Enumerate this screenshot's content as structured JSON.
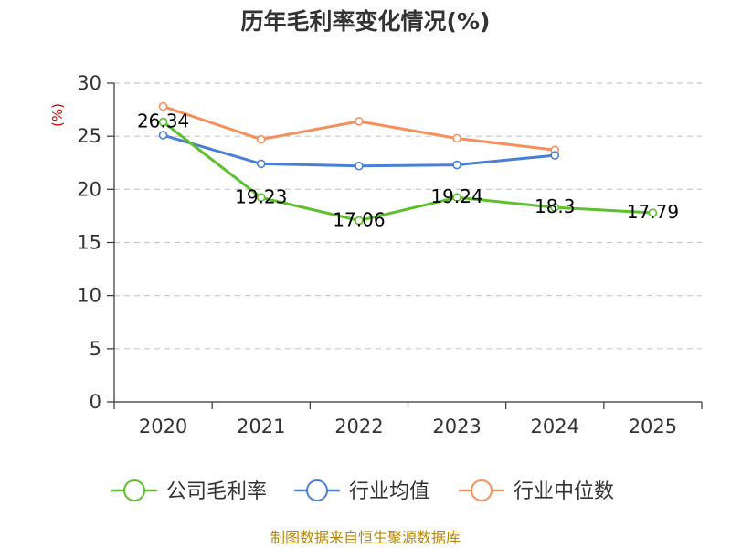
{
  "chart_data": {
    "type": "line",
    "title": "历年毛利率变化情况(%)",
    "unit_label": "(%)",
    "categories": [
      "2020",
      "2021",
      "2022",
      "2023",
      "2024",
      "2025"
    ],
    "ylim": [
      0,
      30
    ],
    "yticks": [
      "0",
      "5",
      "10",
      "15",
      "20",
      "25",
      "30"
    ],
    "grid": true,
    "legend_position": "bottom",
    "series": [
      {
        "name": "公司毛利率",
        "color": "#5cc02d",
        "values": [
          26.34,
          19.23,
          17.06,
          19.24,
          18.3,
          17.79
        ],
        "labels": [
          "26.34",
          "19.23",
          "17.06",
          "19.24",
          "18.3",
          "17.79"
        ]
      },
      {
        "name": "行业均值",
        "color": "#4a7fd6",
        "values": [
          25.1,
          22.4,
          22.2,
          22.3,
          23.2,
          null
        ]
      },
      {
        "name": "行业中位数",
        "color": "#f68f5c",
        "values": [
          27.8,
          24.7,
          26.4,
          24.8,
          23.7,
          null
        ]
      }
    ],
    "source": "制图数据来自恒生聚源数据库"
  }
}
